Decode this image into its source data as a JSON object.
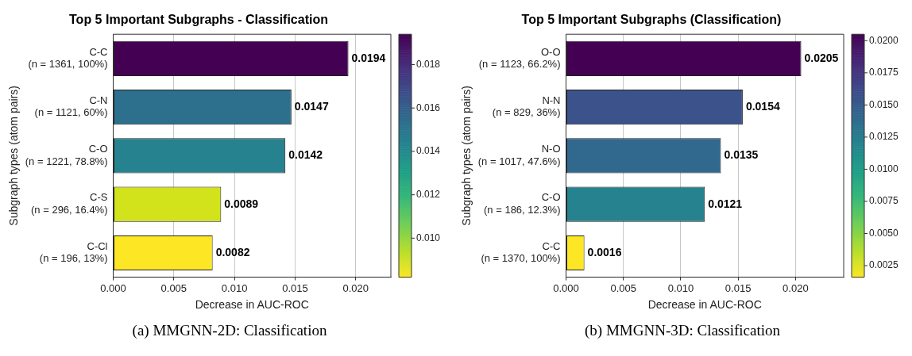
{
  "chart_data": [
    {
      "type": "bar",
      "orientation": "horizontal",
      "title": "Top 5 Important Subgraphs - Classification",
      "xlabel": "Decrease in AUC-ROC",
      "ylabel": "Subgraph types (atom pairs)",
      "categories": [
        "C-C\n(n = 1361, 100%)",
        "C-N\n(n = 1121, 60%)",
        "C-O\n(n = 1221, 78.8%)",
        "C-S\n(n = 296, 16.4%)",
        "C-Cl\n(n = 196, 13%)"
      ],
      "values": [
        0.0194,
        0.0147,
        0.0142,
        0.0089,
        0.0082
      ],
      "colors": [
        "#440154",
        "#2d708e",
        "#26828e",
        "#d2e21b",
        "#fde725"
      ],
      "xlim": [
        0,
        0.0229
      ],
      "xticks": [
        {
          "value": 0,
          "label": "0.000"
        },
        {
          "value": 0.005,
          "label": "0.005"
        },
        {
          "value": 0.01,
          "label": "0.010"
        },
        {
          "value": 0.015,
          "label": "0.015"
        },
        {
          "value": 0.02,
          "label": "0.020"
        }
      ],
      "grid": "x",
      "data_labels": true,
      "clim": [
        0.0082,
        0.0194
      ],
      "cticks": [
        {
          "value": 0.01,
          "label": "0.010"
        },
        {
          "value": 0.012,
          "label": "0.012"
        },
        {
          "value": 0.014,
          "label": "0.014"
        },
        {
          "value": 0.016,
          "label": "0.016"
        },
        {
          "value": 0.018,
          "label": "0.018"
        }
      ],
      "annotations": [
        "(a) MMGNN-2D: Classification"
      ]
    },
    {
      "type": "bar",
      "orientation": "horizontal",
      "title": "Top 5 Important Subgraphs (Classification)",
      "xlabel": "Decrease in AUC-ROC",
      "ylabel": "Subgraph types (atom pairs)",
      "categories": [
        "O-O\n(n = 1123, 66.2%)",
        "N-N\n(n = 829, 36%)",
        "N-O\n(n = 1017, 47.6%)",
        "C-O\n(n = 186, 12.3%)",
        "C-C\n(n = 1370, 100%)"
      ],
      "values": [
        0.0205,
        0.0154,
        0.0135,
        0.0121,
        0.0016
      ],
      "colors": [
        "#440154",
        "#3b528b",
        "#31688e",
        "#26828e",
        "#fde725"
      ],
      "xlim": [
        0,
        0.0242
      ],
      "xticks": [
        {
          "value": 0,
          "label": "0.000"
        },
        {
          "value": 0.005,
          "label": "0.005"
        },
        {
          "value": 0.01,
          "label": "0.010"
        },
        {
          "value": 0.015,
          "label": "0.015"
        },
        {
          "value": 0.02,
          "label": "0.020"
        }
      ],
      "grid": "x",
      "data_labels": true,
      "clim": [
        0.0016,
        0.0205
      ],
      "cticks": [
        {
          "value": 0.0025,
          "label": "0.0025"
        },
        {
          "value": 0.005,
          "label": "0.0050"
        },
        {
          "value": 0.0075,
          "label": "0.0075"
        },
        {
          "value": 0.01,
          "label": "0.0100"
        },
        {
          "value": 0.0125,
          "label": "0.0125"
        },
        {
          "value": 0.015,
          "label": "0.0150"
        },
        {
          "value": 0.0175,
          "label": "0.0175"
        },
        {
          "value": 0.02,
          "label": "0.0200"
        }
      ],
      "annotations": [
        "(b) MMGNN-3D: Classification"
      ]
    }
  ]
}
